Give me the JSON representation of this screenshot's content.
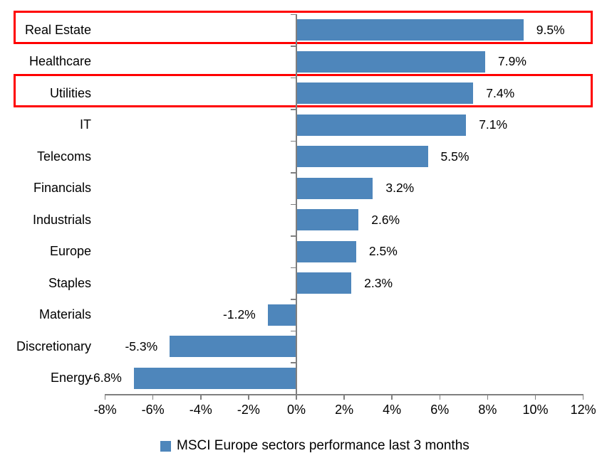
{
  "chart_data": {
    "type": "bar",
    "orientation": "horizontal",
    "categories": [
      "Real Estate",
      "Healthcare",
      "Utilities",
      "IT",
      "Telecoms",
      "Financials",
      "Industrials",
      "Europe",
      "Staples",
      "Materials",
      "Discretionary",
      "Energy"
    ],
    "values": [
      9.5,
      7.9,
      7.4,
      7.1,
      5.5,
      3.2,
      2.6,
      2.5,
      2.3,
      -1.2,
      -5.3,
      -6.8
    ],
    "data_labels": [
      "9.5%",
      "7.9%",
      "7.4%",
      "7.1%",
      "5.5%",
      "3.2%",
      "2.6%",
      "2.5%",
      "2.3%",
      "-1.2%",
      "-5.3%",
      "-6.8%"
    ],
    "x_tick_values": [
      -8,
      -6,
      -4,
      -2,
      0,
      2,
      4,
      6,
      8,
      10,
      12
    ],
    "x_tick_labels": [
      "-8%",
      "-6%",
      "-4%",
      "-2%",
      "0%",
      "2%",
      "4%",
      "6%",
      "8%",
      "10%",
      "12%"
    ],
    "xlim": [
      -8,
      12
    ],
    "grid": false,
    "legend": "MSCI Europe sectors performance last 3 months",
    "legend_position": "bottom",
    "bar_color": "#4e86bb",
    "axis_color": "#7f7f7f",
    "text_color": "#000000",
    "highlight_color": "#ff0000",
    "highlighted_categories": [
      "Real Estate",
      "Utilities"
    ]
  }
}
